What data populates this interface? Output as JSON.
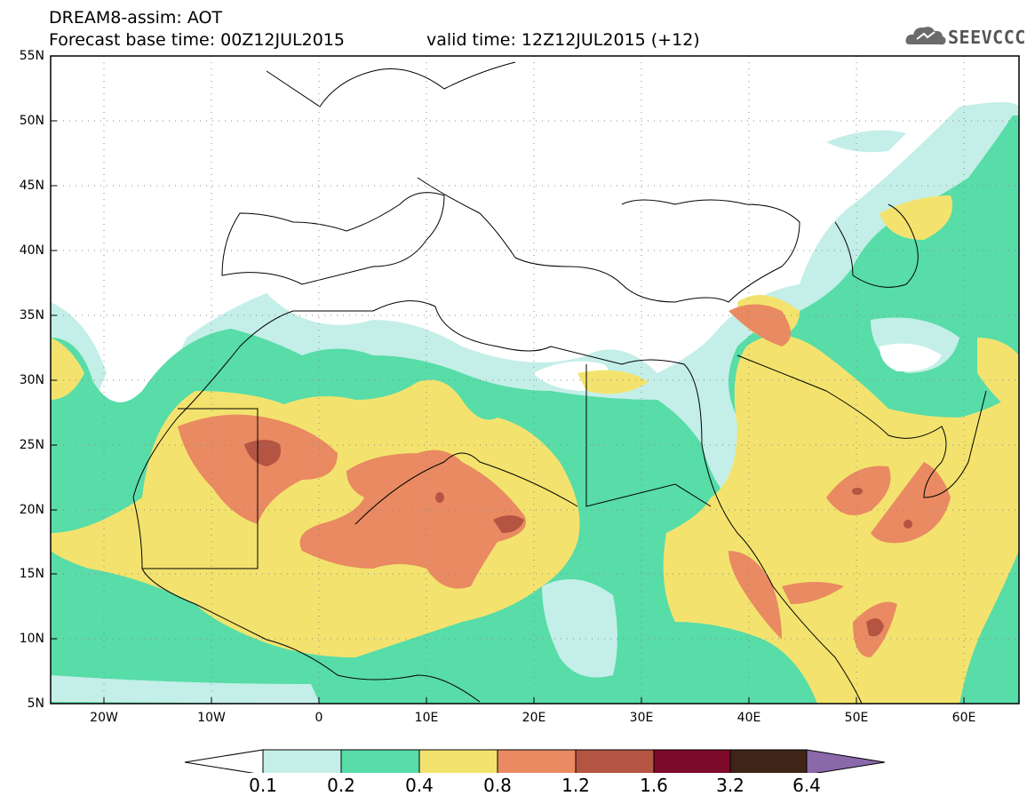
{
  "header": {
    "line1": "DREAM8-assim: AOT",
    "line2": "Forecast base time: 00Z12JUL2015",
    "line2b": "valid time: 12Z12JUL2015 (+12)",
    "logo_text": "SEEVCCC",
    "logo_icon": "cloud-icon"
  },
  "axes": {
    "lat_labels": [
      "55N",
      "50N",
      "45N",
      "40N",
      "35N",
      "30N",
      "25N",
      "20N",
      "15N",
      "10N",
      "5N"
    ],
    "lon_labels": [
      "20W",
      "10W",
      "0",
      "10E",
      "20E",
      "30E",
      "40E",
      "50E",
      "60E"
    ],
    "lon_range": [
      -25,
      65
    ],
    "lat_range": [
      5,
      55
    ],
    "grid": "dotted"
  },
  "colorbar": {
    "labels": [
      "0.1",
      "0.2",
      "0.4",
      "0.8",
      "1.2",
      "1.6",
      "3.2",
      "6.4"
    ],
    "colors": [
      "#ffffff",
      "#c4efe8",
      "#58dca8",
      "#f3e36e",
      "#e98a62",
      "#b45543",
      "#7e0a2a",
      "#3e2517",
      "#8a69aa"
    ]
  }
}
